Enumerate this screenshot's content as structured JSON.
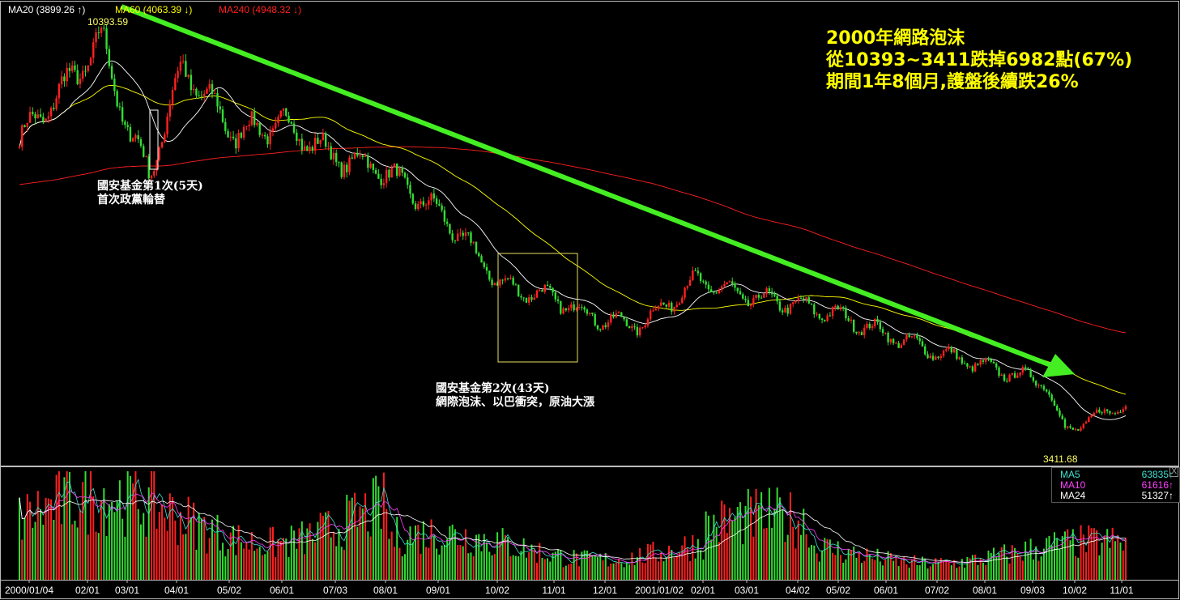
{
  "header": {
    "ma20": {
      "label": "MA20 (3899.26 ↑)",
      "color": "#ffffff"
    },
    "ma60": {
      "label": "MA60 (4063.39 ↓)",
      "color": "#ffff00"
    },
    "ma240": {
      "label": "MA240 (4948.32 ↓)",
      "color": "#ff2020"
    }
  },
  "title": {
    "line1": "2000年網路泡沫",
    "line2": "從10393~3411跌掉6982點(67%)",
    "line3": "期間1年8個月,護盤後續跌26%"
  },
  "annotations": {
    "first": {
      "line1": "國安基金第1次(5天)",
      "line2": "首次政黨輪替"
    },
    "second": {
      "line1": "國安基金第2次(43天)",
      "line2": "網際泡沫、以巴衝突，原油大漲"
    }
  },
  "price_labels": {
    "high": "10393.59",
    "low": "3411.68"
  },
  "volume_legend": {
    "items": [
      {
        "name": "MA5",
        "value": "63835",
        "arrow": "↑",
        "color": "#40e0d0"
      },
      {
        "name": "MA10",
        "value": "61616",
        "arrow": "↑",
        "color": "#ff40ff"
      },
      {
        "name": "MA24",
        "value": "51327",
        "arrow": "↑",
        "color": "#ffffff"
      }
    ],
    "close_glyph": "X"
  },
  "colors": {
    "up": "#ff2020",
    "down": "#33dd33",
    "trend_arrow": "#44ee22",
    "title": "#ffff00"
  },
  "chart_data": {
    "type": "candlestick",
    "x_ticks": [
      "2000/01/04",
      "02/01",
      "03/01",
      "04/01",
      "05/02",
      "06/01",
      "07/03",
      "08/01",
      "09/01",
      "10/02",
      "11/01",
      "12/01",
      "2001/01/02",
      "02/01",
      "03/01",
      "04/02",
      "05/02",
      "06/01",
      "07/02",
      "08/01",
      "09/03",
      "10/02",
      "11/01"
    ],
    "close_anchors": [
      {
        "x": "2000/01/04",
        "y": 8600
      },
      {
        "x": "02/01",
        "y": 9800
      },
      {
        "x": "02/18",
        "y": 10393.59
      },
      {
        "x": "03/10",
        "y": 8700
      },
      {
        "x": "03/17",
        "y": 8000
      },
      {
        "x": "04/06",
        "y": 9900
      },
      {
        "x": "05/02",
        "y": 8700
      },
      {
        "x": "06/01",
        "y": 8900
      },
      {
        "x": "07/03",
        "y": 8300
      },
      {
        "x": "08/01",
        "y": 8100
      },
      {
        "x": "09/01",
        "y": 7200
      },
      {
        "x": "10/02",
        "y": 6000
      },
      {
        "x": "11/01",
        "y": 5800
      },
      {
        "x": "12/01",
        "y": 5400
      },
      {
        "x": "2001/01/02",
        "y": 5300
      },
      {
        "x": "02/01",
        "y": 6100
      },
      {
        "x": "03/01",
        "y": 5800
      },
      {
        "x": "04/02",
        "y": 5700
      },
      {
        "x": "05/02",
        "y": 5500
      },
      {
        "x": "06/01",
        "y": 5100
      },
      {
        "x": "07/02",
        "y": 4800
      },
      {
        "x": "08/01",
        "y": 4500
      },
      {
        "x": "09/03",
        "y": 4300
      },
      {
        "x": "10/03",
        "y": 3411.68
      },
      {
        "x": "11/01",
        "y": 3900
      }
    ],
    "high": {
      "value": 10393.59,
      "date": "2000/02/18"
    },
    "low": {
      "value": 3411.68,
      "date": "2001/10/03"
    },
    "moving_averages": [
      "MA20",
      "MA60",
      "MA240"
    ],
    "volume": {
      "moving_averages": {
        "MA5": 63835,
        "MA10": 61616,
        "MA24": 51327
      }
    },
    "legend_position": "top-left"
  }
}
